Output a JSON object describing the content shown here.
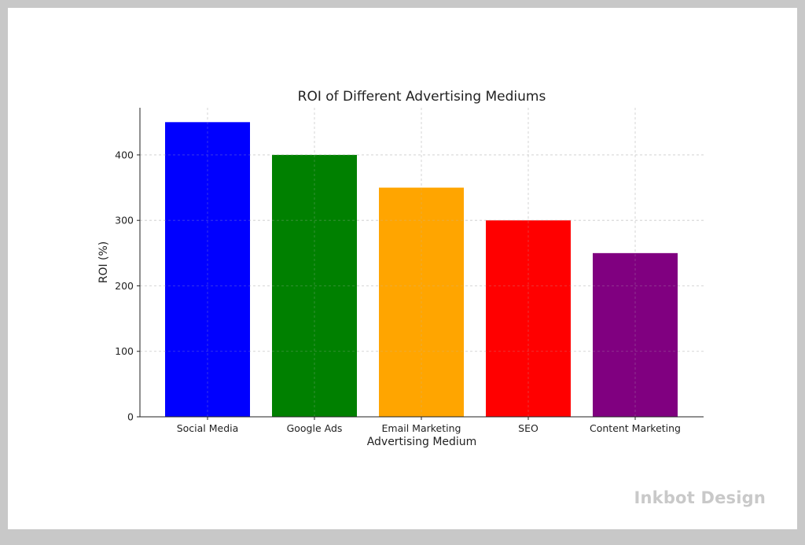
{
  "chart_data": {
    "type": "bar",
    "title": "ROI of Different Advertising Mediums",
    "xlabel": "Advertising Medium",
    "ylabel": "ROI (%)",
    "categories": [
      "Social Media",
      "Google Ads",
      "Email Marketing",
      "SEO",
      "Content Marketing"
    ],
    "values": [
      450,
      400,
      350,
      300,
      250
    ],
    "colors": [
      "#0000ff",
      "#008000",
      "#ffa500",
      "#ff0000",
      "#800080"
    ],
    "ylim": [
      0,
      472
    ],
    "yticks": [
      0,
      100,
      200,
      300,
      400
    ],
    "grid": true,
    "legend": false
  },
  "watermark": "Inkbot Design"
}
